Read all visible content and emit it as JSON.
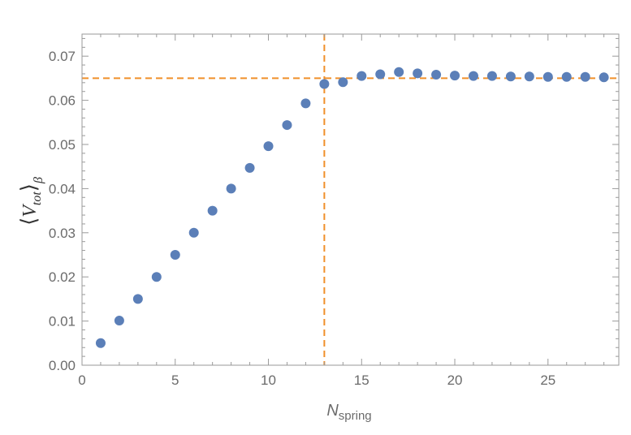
{
  "chart_data": {
    "type": "scatter",
    "title": "",
    "xlabel": "N",
    "xlabel_sub": "spring",
    "ylabel": "V",
    "ylabel_sub": "tot",
    "ylabel_outer_sub": "β",
    "xlim": [
      0,
      28.8
    ],
    "ylim": [
      0,
      0.075
    ],
    "xticks": [
      0,
      5,
      10,
      15,
      20,
      25
    ],
    "yticks": [
      "0.00",
      "0.01",
      "0.02",
      "0.03",
      "0.04",
      "0.05",
      "0.06",
      "0.07"
    ],
    "grid": false,
    "frame": true,
    "series": [
      {
        "color": "#5b7fb8",
        "points": [
          [
            1,
            0.005
          ],
          [
            2,
            0.0101
          ],
          [
            3,
            0.015
          ],
          [
            4,
            0.02
          ],
          [
            5,
            0.025
          ],
          [
            6,
            0.03
          ],
          [
            7,
            0.035
          ],
          [
            8,
            0.04
          ],
          [
            9,
            0.0447
          ],
          [
            10,
            0.0496
          ],
          [
            11,
            0.0544
          ],
          [
            12,
            0.0593
          ],
          [
            13,
            0.0637
          ],
          [
            14,
            0.0641
          ],
          [
            15,
            0.0655
          ],
          [
            16,
            0.0659
          ],
          [
            17,
            0.0664
          ],
          [
            18,
            0.0661
          ],
          [
            19,
            0.0658
          ],
          [
            20,
            0.0656
          ],
          [
            21,
            0.0655
          ],
          [
            22,
            0.0655
          ],
          [
            23,
            0.0654
          ],
          [
            24,
            0.0654
          ],
          [
            25,
            0.0653
          ],
          [
            26,
            0.0653
          ],
          [
            27,
            0.0653
          ],
          [
            28,
            0.0652
          ]
        ]
      }
    ],
    "reference_lines": {
      "color": "#f0902a",
      "horizontal_y": 0.065,
      "vertical_x": 13
    }
  }
}
